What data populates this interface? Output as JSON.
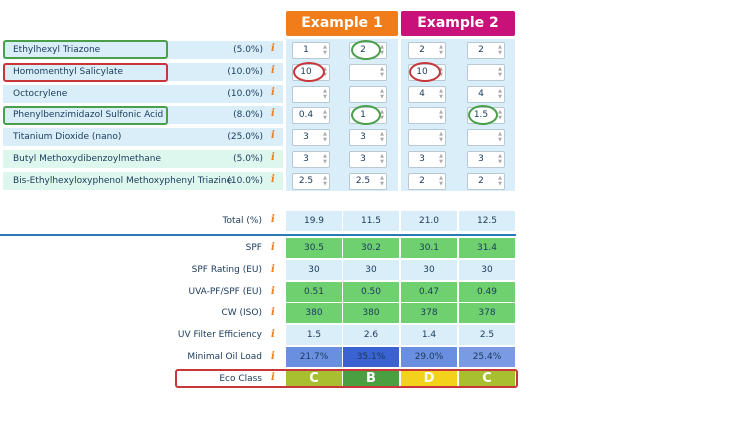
{
  "examples": [
    {
      "label": "Example 1",
      "color": "#f07c1a"
    },
    {
      "label": "Example 2",
      "color": "#c8127a"
    }
  ],
  "info_icon": "i",
  "ingredients": [
    {
      "name": "Ethylhexyl Triazone",
      "pct": "(5.0%)",
      "values": [
        "1",
        "2",
        "2",
        "2"
      ]
    },
    {
      "name": "Homomenthyl Salicylate",
      "pct": "(10.0%)",
      "values": [
        "10",
        "",
        "10",
        ""
      ]
    },
    {
      "name": "Octocrylene",
      "pct": "(10.0%)",
      "values": [
        "",
        "",
        "4",
        "4"
      ]
    },
    {
      "name": "Phenylbenzimidazol Sulfonic Acid",
      "pct": "(8.0%)",
      "values": [
        "0.4",
        "1",
        "",
        "1.5"
      ]
    },
    {
      "name": "Titanium Dioxide (nano)",
      "pct": "(25.0%)",
      "values": [
        "3",
        "3",
        "",
        ""
      ]
    },
    {
      "name": "Butyl Methoxydibenzoylmethane",
      "pct": "(5.0%)",
      "values": [
        "3",
        "3",
        "3",
        "3"
      ]
    },
    {
      "name": "Bis-Ethylhexyloxyphenol Methoxyphenyl Triazine",
      "pct": "(10.0%)",
      "values": [
        "2.5",
        "2.5",
        "2",
        "2"
      ]
    }
  ],
  "total": {
    "label": "Total (%)",
    "values": [
      "19.9",
      "11.5",
      "21.0",
      "12.5"
    ]
  },
  "results": [
    {
      "label": "SPF",
      "values": [
        "30.5",
        "30.2",
        "30.1",
        "31.4"
      ],
      "colors": [
        "#6fd06f",
        "#6fd06f",
        "#6fd06f",
        "#6fd06f"
      ]
    },
    {
      "label": "SPF Rating (EU)",
      "values": [
        "30",
        "30",
        "30",
        "30"
      ],
      "colors": [
        "#d9eef8",
        "#d9eef8",
        "#d9eef8",
        "#d9eef8"
      ]
    },
    {
      "label": "UVA-PF/SPF (EU)",
      "values": [
        "0.51",
        "0.50",
        "0.47",
        "0.49"
      ],
      "colors": [
        "#6fd06f",
        "#6fd06f",
        "#6fd06f",
        "#6fd06f"
      ]
    },
    {
      "label": "CW (ISO)",
      "values": [
        "380",
        "380",
        "378",
        "378"
      ],
      "colors": [
        "#6fd06f",
        "#6fd06f",
        "#6fd06f",
        "#6fd06f"
      ]
    },
    {
      "label": "UV Filter Efficiency",
      "values": [
        "1.5",
        "2.6",
        "1.4",
        "2.5"
      ],
      "colors": [
        "#d9eef8",
        "#d9eef8",
        "#d9eef8",
        "#d9eef8"
      ]
    },
    {
      "label": "Minimal Oil Load",
      "values": [
        "21.7%",
        "35.1%",
        "29.0%",
        "25.4%"
      ],
      "colors": [
        "#6a8fe0",
        "#3a62d0",
        "#6a8fe0",
        "#7a9be4"
      ]
    }
  ],
  "eco": {
    "label": "Eco Class",
    "values": [
      "C",
      "B",
      "D",
      "C"
    ],
    "colors": [
      "#a8c030",
      "#4aa040",
      "#f2d21a",
      "#a8c030"
    ]
  }
}
